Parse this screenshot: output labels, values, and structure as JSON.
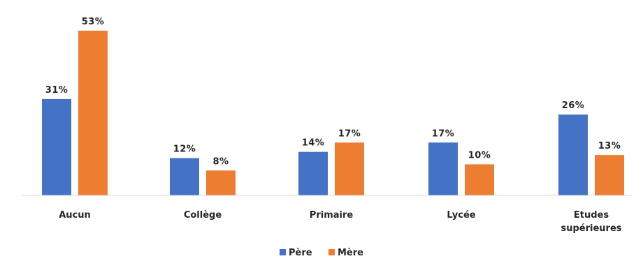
{
  "chart_data": {
    "type": "bar",
    "title": "",
    "xlabel": "",
    "ylabel": "",
    "ylim": [
      0,
      55
    ],
    "grid": false,
    "legend_position": "bottom-center",
    "categories": [
      [
        "Aucun"
      ],
      [
        "Collège"
      ],
      [
        "Primaire"
      ],
      [
        "Lycée"
      ],
      [
        "Etudes",
        "supérieures"
      ]
    ],
    "series": [
      {
        "name": "Père",
        "color": "#4472C4",
        "values": [
          31,
          12,
          14,
          17,
          26
        ],
        "labels": [
          "31%",
          "12%",
          "14%",
          "17%",
          "26%"
        ]
      },
      {
        "name": "Mère",
        "color": "#ED7D31",
        "values": [
          53,
          8,
          17,
          10,
          13
        ],
        "labels": [
          "53%",
          "8%",
          "17%",
          "10%",
          "13%"
        ]
      }
    ]
  }
}
